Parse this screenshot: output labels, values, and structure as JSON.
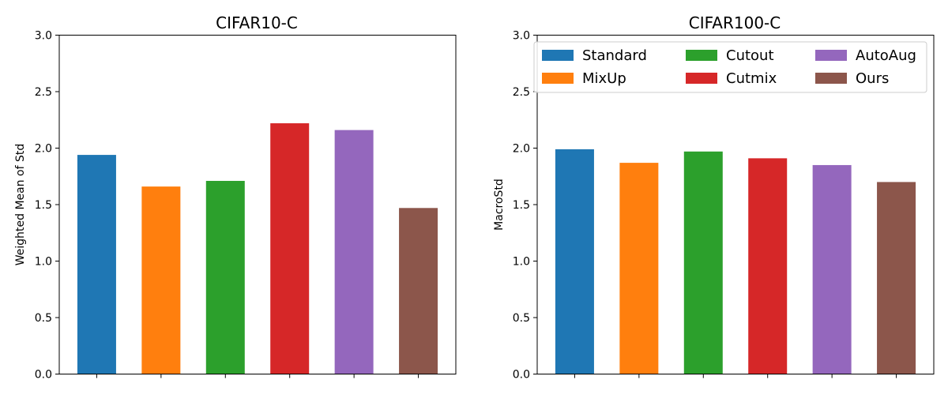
{
  "chart_data": [
    {
      "type": "bar",
      "title": "CIFAR10-C",
      "xlabel": "",
      "ylabel": "Weighted Mean of Std",
      "ylim": [
        0,
        3.0
      ],
      "yticks": [
        "0.0",
        "0.5",
        "1.0",
        "1.5",
        "2.0",
        "2.5",
        "3.0"
      ],
      "categories": [
        "Standard",
        "MixUp",
        "Cutout",
        "Cutmix",
        "AutoAug",
        "Ours"
      ],
      "values": [
        1.94,
        1.66,
        1.71,
        2.22,
        2.16,
        1.47
      ],
      "colors": [
        "#1f77b4",
        "#ff7f0e",
        "#2ca02c",
        "#d62728",
        "#9467bd",
        "#8c564b"
      ],
      "legend": false
    },
    {
      "type": "bar",
      "title": "CIFAR100-C",
      "xlabel": "",
      "ylabel": "MacroStd",
      "ylim": [
        0,
        3.0
      ],
      "yticks": [
        "0.0",
        "0.5",
        "1.0",
        "1.5",
        "2.0",
        "2.5",
        "3.0"
      ],
      "categories": [
        "Standard",
        "MixUp",
        "Cutout",
        "Cutmix",
        "AutoAug",
        "Ours"
      ],
      "values": [
        1.99,
        1.87,
        1.97,
        1.91,
        1.85,
        1.7
      ],
      "colors": [
        "#1f77b4",
        "#ff7f0e",
        "#2ca02c",
        "#d62728",
        "#9467bd",
        "#8c564b"
      ],
      "legend": true,
      "legend_position": "top",
      "legend_columns": 3
    }
  ]
}
